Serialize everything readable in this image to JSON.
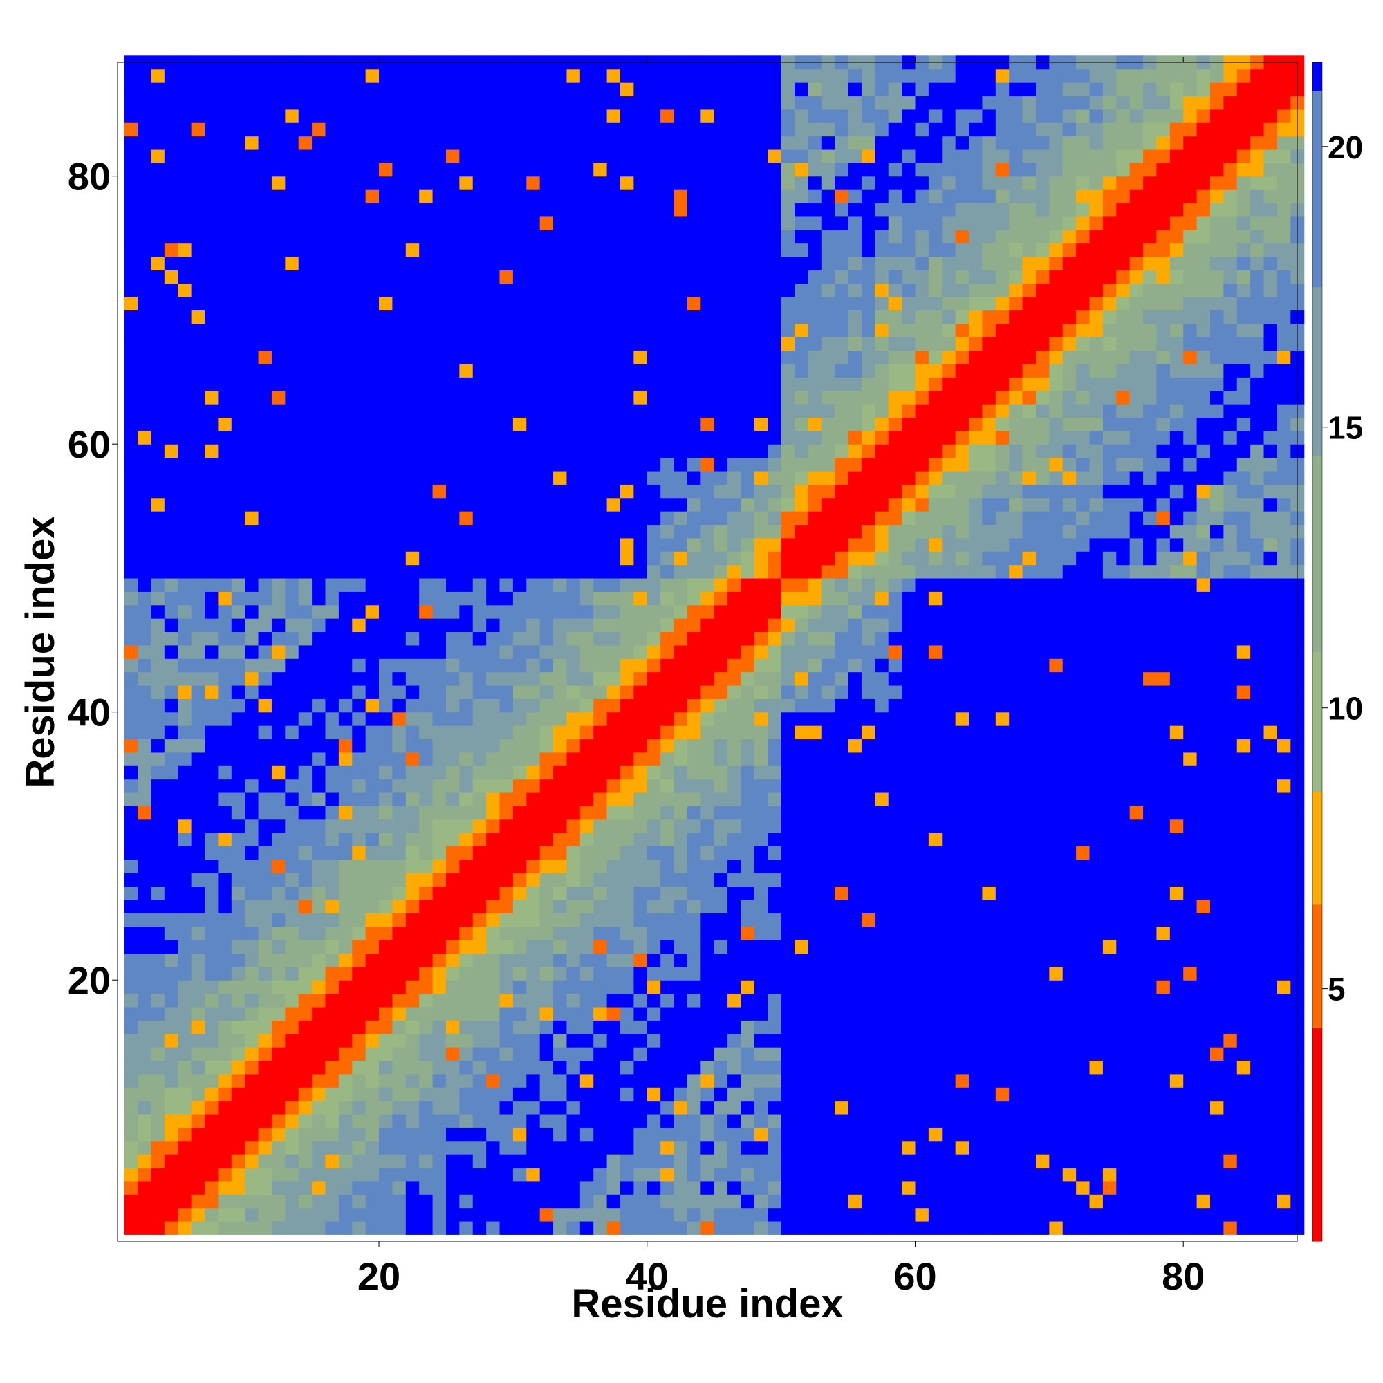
{
  "chart_data": {
    "type": "heatmap",
    "title": "",
    "xlabel": "Residue index",
    "ylabel": "Residue index",
    "x_range": [
      1,
      88
    ],
    "y_range": [
      1,
      88
    ],
    "x_ticks": [
      20,
      40,
      60,
      80
    ],
    "y_ticks": [
      20,
      40,
      60,
      80
    ],
    "n_residues": 88,
    "matrix": "symmetric residue-residue distance map; diagonal distance 0, rising away from diagonal; values above 21 shown saturated blue; two large blue domains (residues 1-49 x 50-88 region)",
    "colorbar": {
      "ticks": [
        5,
        10,
        15,
        20
      ],
      "range": [
        0.5,
        21.5
      ],
      "position": "right",
      "colors": [
        {
          "upto": 4.3,
          "color": "#ff0000"
        },
        {
          "upto": 6.5,
          "color": "#ff6a00"
        },
        {
          "upto": 8.5,
          "color": "#ffaa00"
        },
        {
          "upto": 11.0,
          "color": "#9ab884"
        },
        {
          "upto": 14.5,
          "color": "#90ae8c"
        },
        {
          "upto": 17.5,
          "color": "#7f9fa8"
        },
        {
          "upto": 21.0,
          "color": "#5f87c4"
        },
        {
          "upto": 999,
          "color": "#0000ff"
        }
      ]
    },
    "grid": false,
    "legend": "colorbar-right"
  }
}
